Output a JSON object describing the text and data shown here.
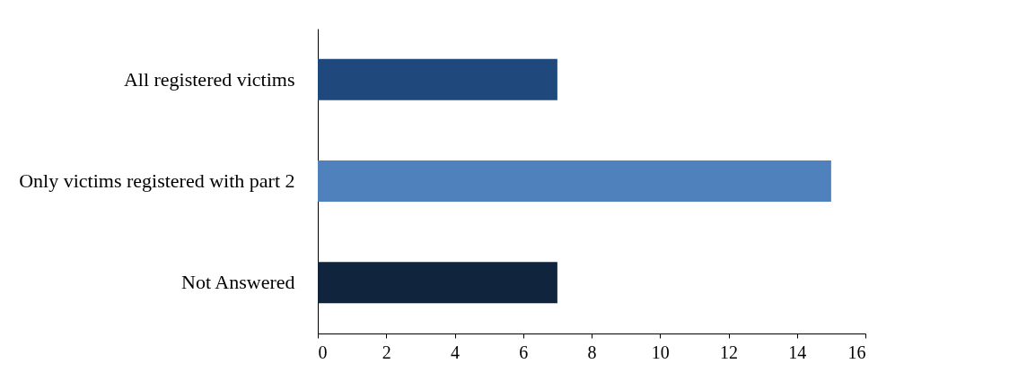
{
  "chart_data": {
    "type": "bar",
    "orientation": "horizontal",
    "categories": [
      "All registered victims",
      "Only victims registered with part 2",
      "Not Answered"
    ],
    "values": [
      7,
      15,
      7
    ],
    "colors": [
      "#1f497d",
      "#4f81bd",
      "#10243e"
    ],
    "xlim": [
      0,
      16
    ],
    "xticks": [
      0,
      2,
      4,
      6,
      8,
      10,
      12,
      14,
      16
    ],
    "grid": false,
    "legend": false
  }
}
